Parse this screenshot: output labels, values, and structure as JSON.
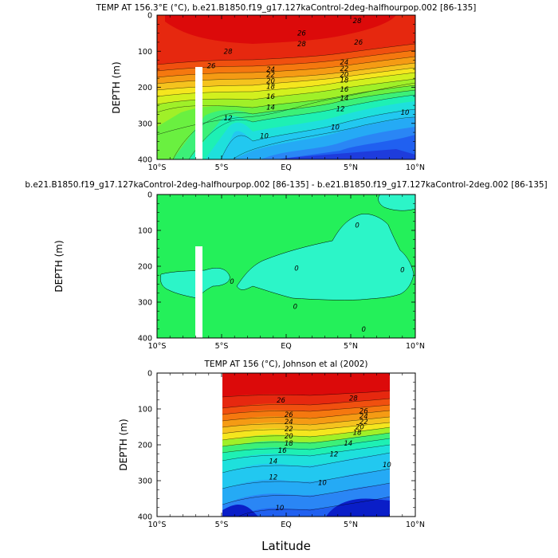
{
  "chart_data": [
    {
      "type": "contour",
      "title": "TEMP AT 156.3°E (°C), b.e21.B1850.f19_g17.127kaControl-2deg-halfhourpop.002 [86-135]",
      "xlabel": "",
      "ylabel": "DEPTH (m)",
      "xlim": [
        -10,
        10
      ],
      "ylim": [
        400,
        0
      ],
      "x_ticks": [
        "10°S",
        "5°S",
        "EQ",
        "5°N",
        "10°N"
      ],
      "y_ticks": [
        "0",
        "100",
        "200",
        "300",
        "400"
      ],
      "contour_interval": 1,
      "masked_region": {
        "lon": [
          -6.5,
          -6.0
        ],
        "depth": [
          145,
          400
        ]
      },
      "colors": [
        "#5a1eb4",
        "#1e3cdc",
        "#2060f0",
        "#2a86f5",
        "#25aaf5",
        "#22c8f0",
        "#1ee0dc",
        "#1ef0b4",
        "#3cf078",
        "#6af040",
        "#a0f028",
        "#d2f01e",
        "#f5e61e",
        "#f5c31e",
        "#f59b14",
        "#f5780f",
        "#f0500f",
        "#e6280f",
        "#dc0a0a"
      ],
      "contour_labels": [
        {
          "value": "28",
          "lon": 1.2,
          "depth": 80
        },
        {
          "value": "28",
          "lon": 5.5,
          "depth": 15
        },
        {
          "value": "28",
          "lon": -4.5,
          "depth": 100
        },
        {
          "value": "26",
          "lon": 1.2,
          "depth": 50
        },
        {
          "value": "26",
          "lon": 5.6,
          "depth": 75
        },
        {
          "value": "26",
          "lon": -5.8,
          "depth": 140
        },
        {
          "value": "24",
          "lon": -1.2,
          "depth": 150
        },
        {
          "value": "24",
          "lon": 4.5,
          "depth": 130
        },
        {
          "value": "22",
          "lon": -1.2,
          "depth": 165
        },
        {
          "value": "22",
          "lon": 4.5,
          "depth": 148
        },
        {
          "value": "20",
          "lon": -1.2,
          "depth": 182
        },
        {
          "value": "20",
          "lon": 4.5,
          "depth": 165
        },
        {
          "value": "18",
          "lon": -1.2,
          "depth": 198
        },
        {
          "value": "18",
          "lon": 4.5,
          "depth": 180
        },
        {
          "value": "16",
          "lon": -1.2,
          "depth": 225
        },
        {
          "value": "16",
          "lon": 4.5,
          "depth": 205
        },
        {
          "value": "14",
          "lon": -1.2,
          "depth": 255
        },
        {
          "value": "14",
          "lon": 4.5,
          "depth": 230
        },
        {
          "value": "12",
          "lon": -4.5,
          "depth": 285
        },
        {
          "value": "12",
          "lon": 4.2,
          "depth": 260
        },
        {
          "value": "10",
          "lon": -1.7,
          "depth": 335
        },
        {
          "value": "10",
          "lon": 3.8,
          "depth": 310
        },
        {
          "value": "10",
          "lon": 9.2,
          "depth": 270
        }
      ]
    },
    {
      "type": "contour",
      "title": "b.e21.B1850.f19_g17.127kaControl-2deg-halfhourpop.002 [86-135] - b.e21.B1850.f19_g17.127kaControl-2deg.002 [86-135]",
      "xlabel": "",
      "ylabel": "DEPTH (m)",
      "xlim": [
        -10,
        10
      ],
      "ylim": [
        400,
        0
      ],
      "x_ticks": [
        "10°S",
        "5°S",
        "EQ",
        "5°N",
        "10°N"
      ],
      "y_ticks": [
        "0",
        "100",
        "200",
        "300",
        "400"
      ],
      "background_color": "#24f05a",
      "region_color": "#2cf5c8",
      "masked_region": {
        "lon": [
          -6.5,
          -6.0
        ],
        "depth": [
          145,
          400
        ]
      },
      "contour_labels": [
        {
          "value": "0",
          "lon": 5.5,
          "depth": 85
        },
        {
          "value": "0",
          "lon": 0.8,
          "depth": 205
        },
        {
          "value": "0",
          "lon": 9.0,
          "depth": 210
        },
        {
          "value": "0",
          "lon": -4.2,
          "depth": 242
        },
        {
          "value": "0",
          "lon": 0.7,
          "depth": 312
        },
        {
          "value": "0",
          "lon": 6.0,
          "depth": 375
        }
      ]
    },
    {
      "type": "contour",
      "title": "TEMP AT 156 (°C), Johnson et al (2002)",
      "xlabel": "Latitude",
      "ylabel": "DEPTH (m)",
      "xlim": [
        -10,
        10
      ],
      "ylim": [
        400,
        0
      ],
      "data_extent": {
        "lon": [
          -5,
          8
        ]
      },
      "x_ticks": [
        "10°S",
        "5°S",
        "EQ",
        "5°N",
        "10°N"
      ],
      "y_ticks": [
        "0",
        "100",
        "200",
        "300",
        "400"
      ],
      "contour_labels": [
        {
          "value": "28",
          "lon": 5.2,
          "depth": 70
        },
        {
          "value": "26",
          "lon": -0.4,
          "depth": 75
        },
        {
          "value": "26",
          "lon": 0.2,
          "depth": 115
        },
        {
          "value": "26",
          "lon": 6.0,
          "depth": 105
        },
        {
          "value": "24",
          "lon": 0.2,
          "depth": 135
        },
        {
          "value": "24",
          "lon": 6.0,
          "depth": 120
        },
        {
          "value": "22",
          "lon": 0.2,
          "depth": 155
        },
        {
          "value": "22",
          "lon": 6.0,
          "depth": 135
        },
        {
          "value": "20",
          "lon": 0.2,
          "depth": 175
        },
        {
          "value": "20",
          "lon": 5.7,
          "depth": 150
        },
        {
          "value": "18",
          "lon": 0.2,
          "depth": 195
        },
        {
          "value": "18",
          "lon": 5.5,
          "depth": 165
        },
        {
          "value": "16",
          "lon": -0.3,
          "depth": 215
        },
        {
          "value": "14",
          "lon": -1.0,
          "depth": 245
        },
        {
          "value": "14",
          "lon": 4.8,
          "depth": 195
        },
        {
          "value": "12",
          "lon": -1.0,
          "depth": 290
        },
        {
          "value": "12",
          "lon": 3.7,
          "depth": 225
        },
        {
          "value": "10",
          "lon": -0.5,
          "depth": 375
        },
        {
          "value": "10",
          "lon": 2.8,
          "depth": 305
        },
        {
          "value": "10",
          "lon": 7.8,
          "depth": 255
        }
      ]
    }
  ]
}
